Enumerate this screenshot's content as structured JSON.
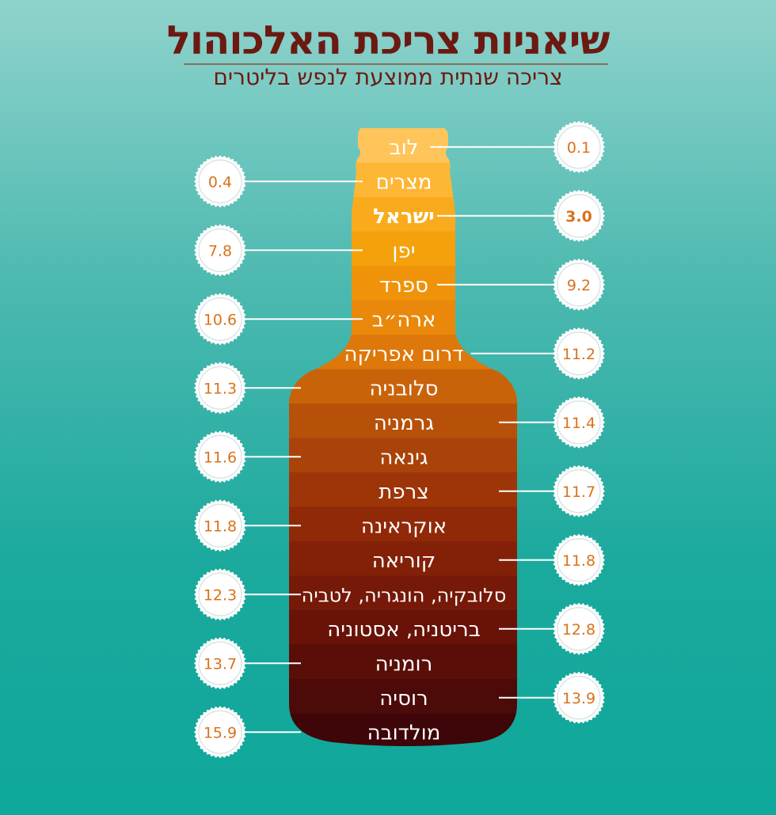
{
  "title": "שיאניות צריכת האלכוהול",
  "subtitle": "צריכה שנתית ממוצעת לנפש בליטרים",
  "colors": {
    "value_text": "#d9721a",
    "label_text": "#ffffff",
    "band_top": "#ffc55a",
    "band_bottom": "#3d0707",
    "title": "#6b1a12"
  },
  "chart_data": {
    "type": "bar",
    "title": "שיאניות צריכת האלכוהול",
    "subtitle": "צריכה שנתית ממוצעת לנפש בליטרים",
    "highlight": "ישראל",
    "categories": [
      "לוב",
      "מצרים",
      "ישראל",
      "יפן",
      "ספרד",
      "ארה״ב",
      "דרום אפריקה",
      "סלובניה",
      "גרמניה",
      "גינאה",
      "צרפת",
      "אוקראינה",
      "קוריאה",
      "סלובקיה, הונגריה, לטביה",
      "בריטניה, אסטוניה",
      "רומניה",
      "רוסיה",
      "מולדובה"
    ],
    "values": [
      0.1,
      0.4,
      3.0,
      7.8,
      9.2,
      10.6,
      11.2,
      11.3,
      11.4,
      11.6,
      11.7,
      11.8,
      11.8,
      12.3,
      12.8,
      13.7,
      13.9,
      15.9
    ],
    "value_labels": [
      "0.1",
      "0.4",
      "3.0",
      "7.8",
      "9.2",
      "10.6",
      "11.2",
      "11.3",
      "11.4",
      "11.6",
      "11.7",
      "11.8",
      "11.8",
      "12.3",
      "12.8",
      "13.7",
      "13.9",
      "15.9"
    ]
  }
}
